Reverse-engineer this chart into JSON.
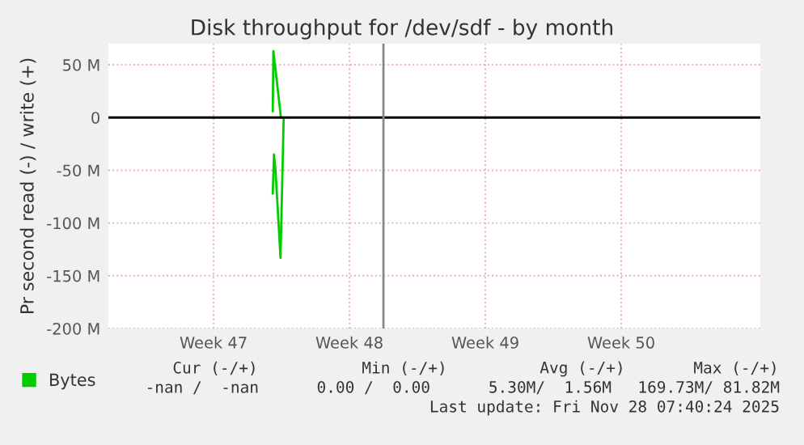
{
  "chart_data": {
    "type": "line",
    "title": "Disk throughput for /dev/sdf - by month",
    "ylabel": "Pr second read (-) / write (+)",
    "series": [
      {
        "name": "Bytes",
        "color": "#00cc00",
        "x": [
          "2025-11-22T14:50",
          "2025-11-22T15:35",
          "2025-11-22T17:35",
          "2025-11-23T00:55",
          null,
          "2025-11-22T14:50",
          "2025-11-22T16:20",
          "2025-11-22T18:15",
          "2025-11-23T00:25",
          "2025-11-23T04:20"
        ],
        "values": [
          6,
          63,
          50,
          0,
          null,
          -72,
          -35,
          -50,
          -133,
          0
        ]
      }
    ],
    "xlim": [
      "2025-11-14T03:35",
      "2025-12-17T17:40"
    ],
    "xticks": [
      {
        "value": "2025-11-19T13:40",
        "label": "Week 47"
      },
      {
        "value": "2025-11-26T13:40",
        "label": "Week 48"
      },
      {
        "value": "2025-12-03T13:40",
        "label": "Week 49"
      },
      {
        "value": "2025-12-10T13:40",
        "label": "Week 50"
      }
    ],
    "ylim": [
      -200,
      70
    ],
    "yticks": [
      {
        "value": 50,
        "label": "50 M"
      },
      0,
      {
        "value": -50,
        "label": "-50 M"
      },
      {
        "value": -100,
        "label": "-100 M"
      },
      {
        "value": -150,
        "label": "-150 M"
      },
      {
        "value": -200,
        "label": "-200 M"
      }
    ],
    "ref_lines": [
      {
        "axis": "y",
        "value": 0,
        "color": "#000000"
      },
      {
        "axis": "x",
        "value": "2025-11-28T07:40",
        "color": "#888888"
      }
    ],
    "grid": true,
    "legend": "bottom left",
    "annotations": [
      "Cur (-/+)",
      "Min (-/+)",
      "Avg (-/+)",
      "Max (-/+)",
      "-nan /  -nan",
      "0.00 /  0.00",
      "5.30M/  1.56M",
      "169.73M/ 81.82M",
      "Last update: Fri Nov 28 07:40:24 2025"
    ]
  }
}
